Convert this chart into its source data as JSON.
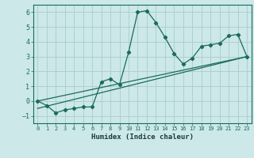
{
  "xlabel": "Humidex (Indice chaleur)",
  "ylabel": "",
  "background_color": "#cce8e8",
  "grid_color": "#aacccc",
  "line_color": "#1a6b5a",
  "xlim": [
    -0.5,
    23.5
  ],
  "ylim": [
    -1.5,
    6.5
  ],
  "xticks": [
    0,
    1,
    2,
    3,
    4,
    5,
    6,
    7,
    8,
    9,
    10,
    11,
    12,
    13,
    14,
    15,
    16,
    17,
    18,
    19,
    20,
    21,
    22,
    23
  ],
  "yticks": [
    -1,
    0,
    1,
    2,
    3,
    4,
    5,
    6
  ],
  "scatter_x": [
    0,
    1,
    2,
    3,
    4,
    5,
    6,
    7,
    8,
    9,
    10,
    11,
    12,
    13,
    14,
    15,
    16,
    17,
    18,
    19,
    20,
    21,
    22,
    23
  ],
  "scatter_y": [
    0.0,
    -0.3,
    -0.8,
    -0.6,
    -0.5,
    -0.4,
    -0.4,
    1.3,
    1.5,
    1.1,
    3.3,
    6.0,
    6.1,
    5.3,
    4.3,
    3.2,
    2.5,
    2.9,
    3.7,
    3.8,
    3.9,
    4.4,
    4.5,
    3.0
  ],
  "line1_x": [
    0,
    23
  ],
  "line1_y": [
    0.0,
    3.0
  ],
  "line2_x": [
    0,
    23
  ],
  "line2_y": [
    -0.5,
    3.0
  ]
}
